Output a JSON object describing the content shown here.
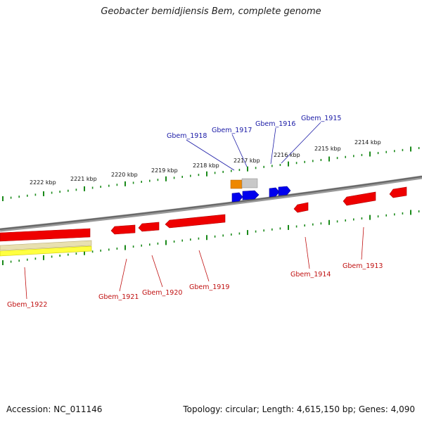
{
  "title": "Geobacter bemidjiensis Bem, complete genome",
  "footer": {
    "accession": "Accession: NC_011146",
    "summary": "Topology: circular; Length: 4,615,150 bp; Genes: 4,090"
  },
  "colors": {
    "forward_gene": "#e00000",
    "reverse_gene": "#0000dd",
    "label_top": "#1a1aa6",
    "label_bottom": "#c01010",
    "tick": "#1a8a1a",
    "backbone": "#888888",
    "track_orange": "#ee8800",
    "track_grey": "#c0c0c0",
    "track_yellow": "#ffff33"
  },
  "scale_labels": [
    "2222 kbp",
    "2221 kbp",
    "2220 kbp",
    "2219 kbp",
    "2218 kbp",
    "2217 kbp",
    "2216 kbp",
    "2215 kbp",
    "2214 kbp"
  ],
  "genes_top": [
    "Gbem_1918",
    "Gbem_1917",
    "Gbem_1916",
    "Gbem_1915"
  ],
  "genes_bottom": [
    "Gbem_1922",
    "Gbem_1921",
    "Gbem_1920",
    "Gbem_1919",
    "Gbem_1914",
    "Gbem_1913"
  ]
}
